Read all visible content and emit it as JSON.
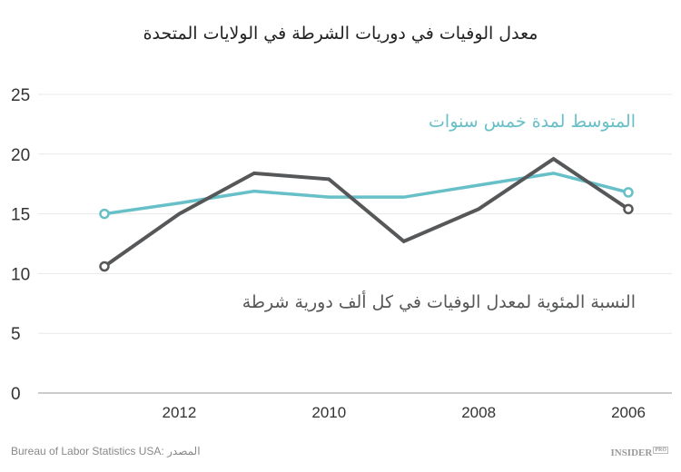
{
  "chart_data": {
    "type": "line",
    "title": "معدل الوفيات في دوريات الشرطة في الولايات المتحدة",
    "x": [
      2013,
      2012,
      2011,
      2010,
      2009,
      2008,
      2007,
      2006
    ],
    "x_order": "reversed",
    "x_tick_labels": [
      "2012",
      "2010",
      "2008",
      "2006"
    ],
    "x_ticks": [
      2012,
      2010,
      2008,
      2006
    ],
    "y_ticks": [
      0,
      5,
      10,
      15,
      20,
      25
    ],
    "ylim": [
      0,
      25
    ],
    "grid": true,
    "series": [
      {
        "name": "المتوسط لمدة خمس سنوات",
        "color": "#67bfc7",
        "values": [
          15.0,
          15.9,
          16.9,
          16.4,
          16.4,
          17.4,
          18.4,
          16.8
        ]
      },
      {
        "name": "النسبة المئوية لمعدل الوفيات في كل ألف دورية شرطة",
        "color": "#555759",
        "values": [
          10.6,
          15.0,
          18.4,
          17.9,
          12.7,
          15.4,
          19.6,
          15.4
        ]
      }
    ]
  },
  "footer": {
    "source": "Bureau of Labor Statistics USA: المصدر",
    "logo": "INSIDER",
    "logo_badge": "PRO"
  }
}
